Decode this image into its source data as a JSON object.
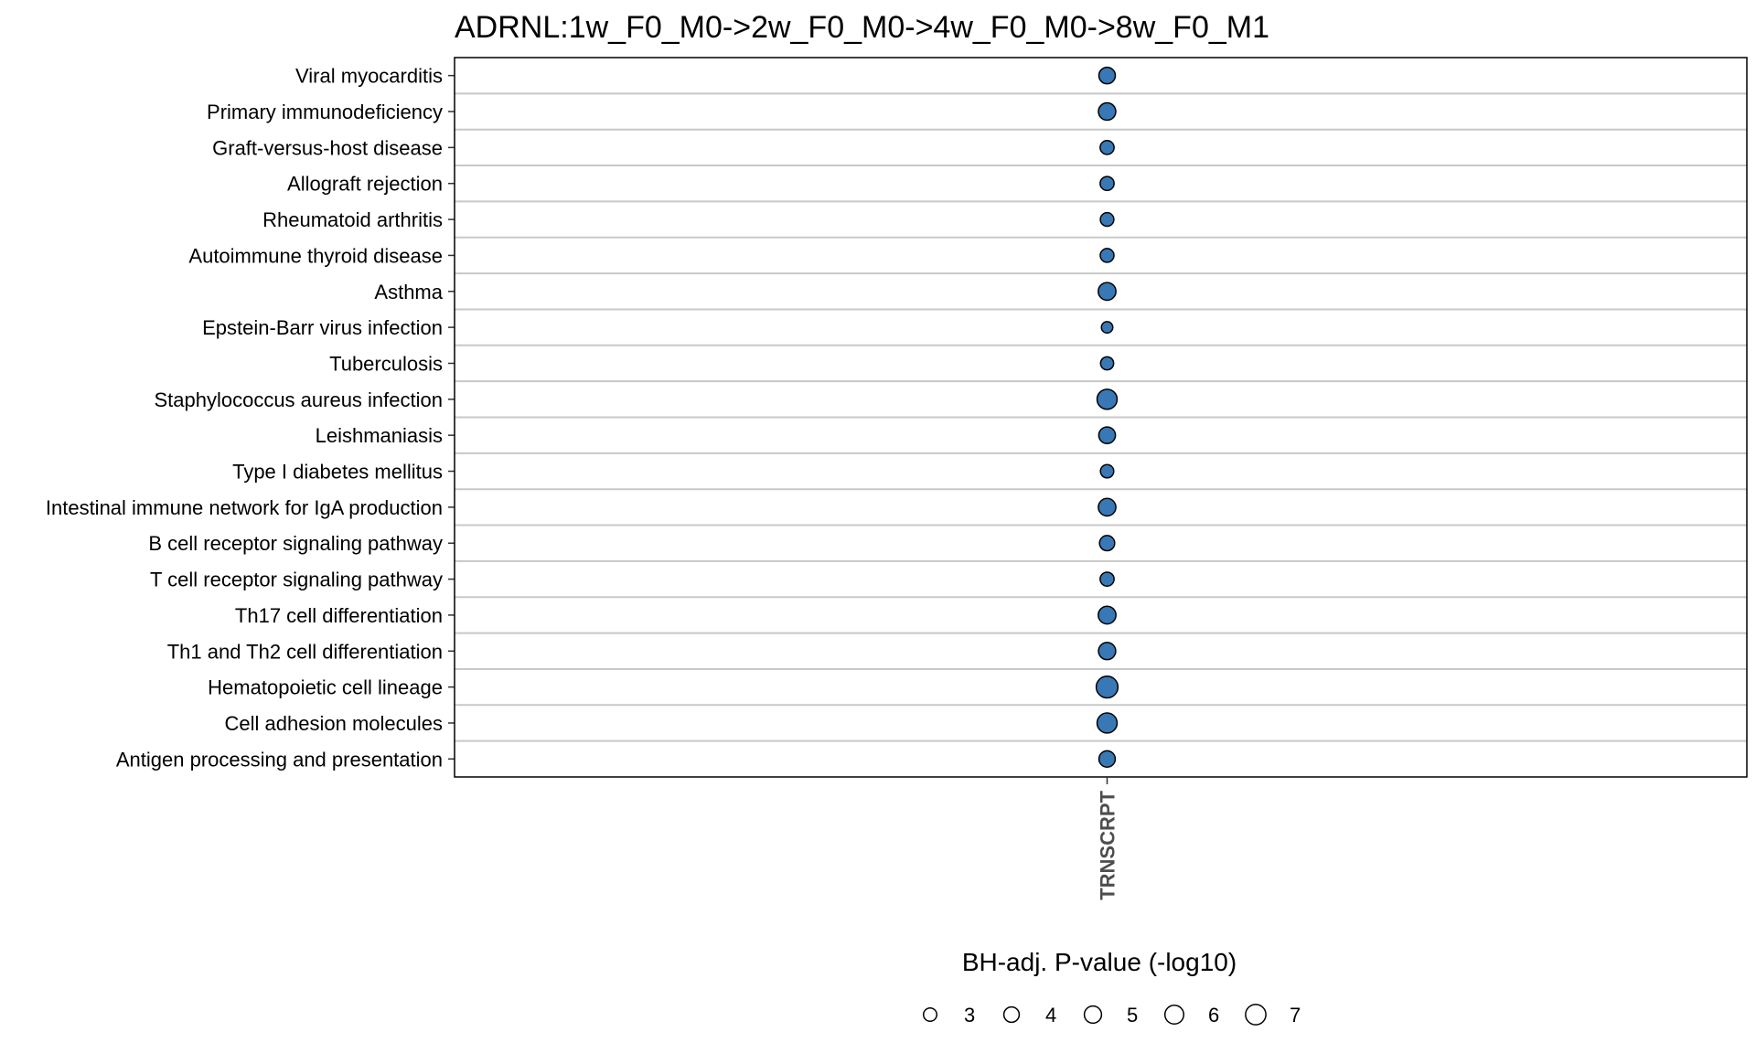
{
  "chart_data": {
    "type": "scatter",
    "title": "ADRNL:1w_F0_M0->2w_F0_M0->4w_F0_M0->8w_F0_M1",
    "x_categories": [
      "TRNSCRPT"
    ],
    "y_categories": [
      "Viral myocarditis",
      "Primary immunodeficiency",
      "Graft-versus-host disease",
      "Allograft rejection",
      "Rheumatoid arthritis",
      "Autoimmune thyroid disease",
      "Asthma",
      "Epstein-Barr virus infection",
      "Tuberculosis",
      "Staphylococcus aureus infection",
      "Leishmaniasis",
      "Type I diabetes mellitus",
      "Intestinal immune network for IgA production",
      "B cell receptor signaling pathway",
      "T cell receptor signaling pathway",
      "Th17 cell differentiation",
      "Th1 and Th2 cell differentiation",
      "Hematopoietic cell lineage",
      "Cell adhesion molecules",
      "Antigen processing and presentation"
    ],
    "points": [
      {
        "x": "TRNSCRPT",
        "y": "Viral myocarditis",
        "size": 4.6
      },
      {
        "x": "TRNSCRPT",
        "y": "Primary immunodeficiency",
        "size": 5.1
      },
      {
        "x": "TRNSCRPT",
        "y": "Graft-versus-host disease",
        "size": 3.3
      },
      {
        "x": "TRNSCRPT",
        "y": "Allograft rejection",
        "size": 3.3
      },
      {
        "x": "TRNSCRPT",
        "y": "Rheumatoid arthritis",
        "size": 3.1
      },
      {
        "x": "TRNSCRPT",
        "y": "Autoimmune thyroid disease",
        "size": 3.2
      },
      {
        "x": "TRNSCRPT",
        "y": "Asthma",
        "size": 5.3
      },
      {
        "x": "TRNSCRPT",
        "y": "Epstein-Barr virus infection",
        "size": 2.2
      },
      {
        "x": "TRNSCRPT",
        "y": "Tuberculosis",
        "size": 2.9
      },
      {
        "x": "TRNSCRPT",
        "y": "Staphylococcus aureus infection",
        "size": 6.8
      },
      {
        "x": "TRNSCRPT",
        "y": "Leishmaniasis",
        "size": 4.7
      },
      {
        "x": "TRNSCRPT",
        "y": "Type I diabetes mellitus",
        "size": 3.0
      },
      {
        "x": "TRNSCRPT",
        "y": "Intestinal immune network for IgA production",
        "size": 5.2
      },
      {
        "x": "TRNSCRPT",
        "y": "B cell receptor signaling pathway",
        "size": 3.9
      },
      {
        "x": "TRNSCRPT",
        "y": "T cell receptor signaling pathway",
        "size": 3.3
      },
      {
        "x": "TRNSCRPT",
        "y": "Th17 cell differentiation",
        "size": 5.3
      },
      {
        "x": "TRNSCRPT",
        "y": "Th1 and Th2 cell differentiation",
        "size": 5.0
      },
      {
        "x": "TRNSCRPT",
        "y": "Hematopoietic cell lineage",
        "size": 8.0
      },
      {
        "x": "TRNSCRPT",
        "y": "Cell adhesion molecules",
        "size": 6.8
      },
      {
        "x": "TRNSCRPT",
        "y": "Antigen processing and presentation",
        "size": 4.5
      }
    ],
    "size_legend": {
      "title": "BH-adj. P-value (-log10)",
      "breaks": [
        3,
        4,
        5,
        6,
        7
      ],
      "labels": [
        "3",
        "4",
        "5",
        "6",
        "7"
      ],
      "placement": "bottom"
    },
    "point_fill": "#3878b5",
    "point_stroke": "#000000",
    "gridline_color": "#c8c8c8",
    "grid": true
  }
}
